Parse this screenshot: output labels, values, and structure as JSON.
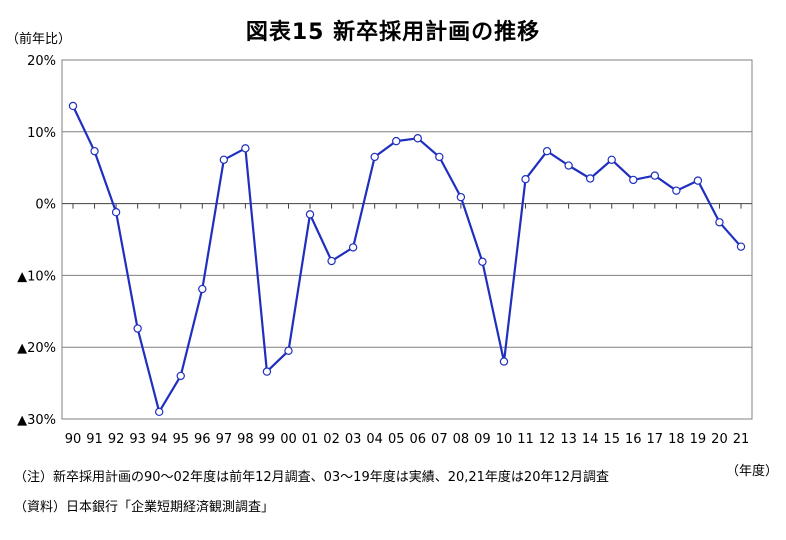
{
  "chart_data": {
    "type": "line",
    "title": "図表15 新卒採用計画の推移",
    "ylabel": "（前年比）",
    "xlabel": "（年度）",
    "ylim": [
      -30,
      20
    ],
    "yticks": [
      20,
      10,
      0,
      -10,
      -20,
      -30
    ],
    "ytick_labels": [
      "20%",
      "10%",
      "0%",
      "▲10%",
      "▲20%",
      "▲30%"
    ],
    "grid": true,
    "categories": [
      "90",
      "91",
      "92",
      "93",
      "94",
      "95",
      "96",
      "97",
      "98",
      "99",
      "00",
      "01",
      "02",
      "03",
      "04",
      "05",
      "06",
      "07",
      "08",
      "09",
      "10",
      "11",
      "12",
      "13",
      "14",
      "15",
      "16",
      "17",
      "18",
      "19",
      "20",
      "21"
    ],
    "series": [
      {
        "color": "#1f2fbf",
        "values": [
          13.6,
          7.3,
          -1.2,
          -17.4,
          -29.0,
          -24.0,
          -11.9,
          6.1,
          7.7,
          -23.4,
          -20.5,
          -1.5,
          -8.0,
          -6.1,
          6.5,
          8.7,
          9.1,
          6.5,
          0.9,
          -8.1,
          -22.0,
          3.4,
          7.3,
          5.3,
          3.5,
          6.1,
          3.3,
          3.9,
          1.8,
          3.2,
          -2.6,
          -6.0
        ]
      }
    ]
  },
  "notes": {
    "note": "（注）新卒採用計画の90～02年度は前年12月調査、03～19年度は実績、20,21年度は20年12月調査",
    "source": "（資料）日本銀行「企業短期経済観測調査」"
  }
}
